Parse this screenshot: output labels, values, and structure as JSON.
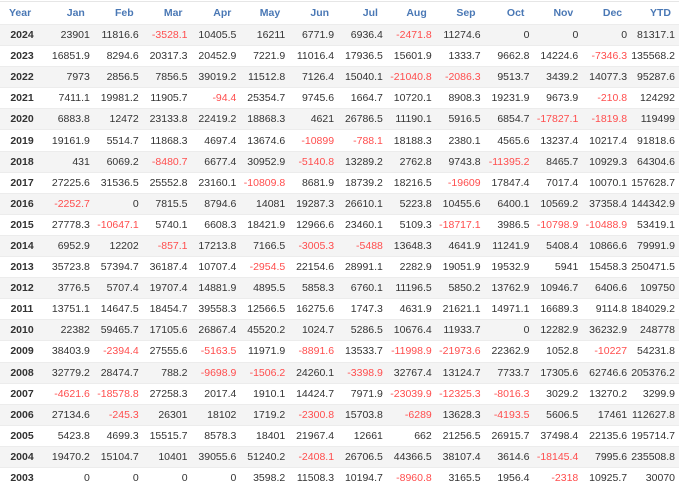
{
  "colors": {
    "header": "#4a78b5",
    "negative": "#ff4d4d",
    "text": "#333333",
    "stripe": "#f4f4f4"
  },
  "headers": [
    "Year",
    "Jan",
    "Feb",
    "Mar",
    "Apr",
    "May",
    "Jun",
    "Jul",
    "Aug",
    "Sep",
    "Oct",
    "Nov",
    "Dec",
    "YTD"
  ],
  "rows": [
    {
      "year": "2024",
      "values": [
        "23901",
        "11816.6",
        "-3528.1",
        "10405.5",
        "16211",
        "6771.9",
        "6936.4",
        "-2471.8",
        "11274.6",
        "0",
        "0",
        "0",
        "81317.1"
      ]
    },
    {
      "year": "2023",
      "values": [
        "16851.9",
        "8294.6",
        "20317.3",
        "20452.9",
        "7221.9",
        "11016.4",
        "17936.5",
        "15601.9",
        "1333.7",
        "9662.8",
        "14224.6",
        "-7346.3",
        "135568.2"
      ]
    },
    {
      "year": "2022",
      "values": [
        "7973",
        "2856.5",
        "7856.5",
        "39019.2",
        "11512.8",
        "7126.4",
        "15040.1",
        "-21040.8",
        "-2086.3",
        "9513.7",
        "3439.2",
        "14077.3",
        "95287.6"
      ]
    },
    {
      "year": "2021",
      "values": [
        "7411.1",
        "19981.2",
        "11905.7",
        "-94.4",
        "25354.7",
        "9745.6",
        "1664.7",
        "10720.1",
        "8908.3",
        "19231.9",
        "9673.9",
        "-210.8",
        "124292"
      ]
    },
    {
      "year": "2020",
      "values": [
        "6883.8",
        "12472",
        "23133.8",
        "22419.2",
        "18868.3",
        "4621",
        "26786.5",
        "11190.1",
        "5916.5",
        "6854.7",
        "-17827.1",
        "-1819.8",
        "119499"
      ]
    },
    {
      "year": "2019",
      "values": [
        "19161.9",
        "5514.7",
        "11868.3",
        "4697.4",
        "13674.6",
        "-10899",
        "-788.1",
        "18188.3",
        "2380.1",
        "4565.6",
        "13237.4",
        "10217.4",
        "91818.6"
      ]
    },
    {
      "year": "2018",
      "values": [
        "431",
        "6069.2",
        "-8480.7",
        "6677.4",
        "30952.9",
        "-5140.8",
        "13289.2",
        "2762.8",
        "9743.8",
        "-11395.2",
        "8465.7",
        "10929.3",
        "64304.6"
      ]
    },
    {
      "year": "2017",
      "values": [
        "27225.6",
        "31536.5",
        "25552.8",
        "23160.1",
        "-10809.8",
        "8681.9",
        "18739.2",
        "18216.5",
        "-19609",
        "17847.4",
        "7017.4",
        "10070.1",
        "157628.7"
      ]
    },
    {
      "year": "2016",
      "values": [
        "-2252.7",
        "0",
        "7815.5",
        "8794.6",
        "14081",
        "19287.3",
        "26610.1",
        "5223.8",
        "10455.6",
        "6400.1",
        "10569.2",
        "37358.4",
        "144342.9"
      ]
    },
    {
      "year": "2015",
      "values": [
        "27778.3",
        "-10647.1",
        "5740.1",
        "6608.3",
        "18421.9",
        "12966.6",
        "23460.1",
        "5109.3",
        "-18717.1",
        "3986.5",
        "-10798.9",
        "-10488.9",
        "53419.1"
      ]
    },
    {
      "year": "2014",
      "values": [
        "6952.9",
        "12202",
        "-857.1",
        "17213.8",
        "7166.5",
        "-3005.3",
        "-5488",
        "13648.3",
        "4641.9",
        "11241.9",
        "5408.4",
        "10866.6",
        "79991.9"
      ]
    },
    {
      "year": "2013",
      "values": [
        "35723.8",
        "57394.7",
        "36187.4",
        "10707.4",
        "-2954.5",
        "22154.6",
        "28991.1",
        "2282.9",
        "19051.9",
        "19532.9",
        "5941",
        "15458.3",
        "250471.5"
      ]
    },
    {
      "year": "2012",
      "values": [
        "3776.5",
        "5707.4",
        "19707.4",
        "14881.9",
        "4895.5",
        "5858.3",
        "6760.1",
        "11196.5",
        "5850.2",
        "13762.9",
        "10946.7",
        "6406.6",
        "109750"
      ]
    },
    {
      "year": "2011",
      "values": [
        "13751.1",
        "14647.5",
        "18454.7",
        "39558.3",
        "12566.5",
        "16275.6",
        "1747.3",
        "4631.9",
        "21621.1",
        "14971.1",
        "16689.3",
        "9114.8",
        "184029.2"
      ]
    },
    {
      "year": "2010",
      "values": [
        "22382",
        "59465.7",
        "17105.6",
        "26867.4",
        "45520.2",
        "1024.7",
        "5286.5",
        "10676.4",
        "11933.7",
        "0",
        "12282.9",
        "36232.9",
        "248778"
      ]
    },
    {
      "year": "2009",
      "values": [
        "38403.9",
        "-2394.4",
        "27555.6",
        "-5163.5",
        "11971.9",
        "-8891.6",
        "13533.7",
        "-11998.9",
        "-21973.6",
        "22362.9",
        "1052.8",
        "-10227",
        "54231.8"
      ]
    },
    {
      "year": "2008",
      "values": [
        "32779.2",
        "28474.7",
        "788.2",
        "-9698.9",
        "-1506.2",
        "24260.1",
        "-3398.9",
        "32767.4",
        "13124.7",
        "7733.7",
        "17305.6",
        "62746.6",
        "205376.2"
      ]
    },
    {
      "year": "2007",
      "values": [
        "-4621.6",
        "-18578.8",
        "27258.3",
        "2017.4",
        "1910.1",
        "14424.7",
        "7971.9",
        "-23039.9",
        "-12325.3",
        "-8016.3",
        "3029.2",
        "13270.2",
        "3299.9"
      ]
    },
    {
      "year": "2006",
      "values": [
        "27134.6",
        "-245.3",
        "26301",
        "18102",
        "1719.2",
        "-2300.8",
        "15703.8",
        "-6289",
        "13628.3",
        "-4193.5",
        "5606.5",
        "17461",
        "112627.8"
      ]
    },
    {
      "year": "2005",
      "values": [
        "5423.8",
        "4699.3",
        "15515.7",
        "8578.3",
        "18401",
        "21967.4",
        "12661",
        "662",
        "21256.5",
        "26915.7",
        "37498.4",
        "22135.6",
        "195714.7"
      ]
    },
    {
      "year": "2004",
      "values": [
        "19470.2",
        "15104.7",
        "10401",
        "39055.6",
        "51240.2",
        "-2408.1",
        "26706.5",
        "44366.5",
        "38107.4",
        "3614.6",
        "-18145.4",
        "7995.6",
        "235508.8"
      ]
    },
    {
      "year": "2003",
      "values": [
        "0",
        "0",
        "0",
        "0",
        "3598.2",
        "11508.3",
        "10194.7",
        "-8960.8",
        "3165.5",
        "1956.4",
        "-2318",
        "10925.7",
        "30070"
      ]
    }
  ]
}
